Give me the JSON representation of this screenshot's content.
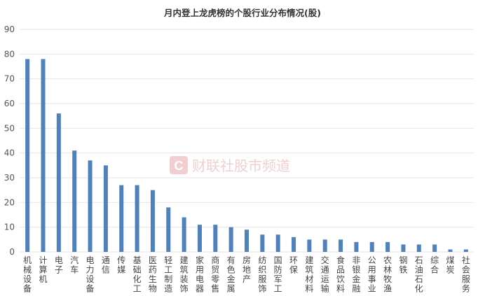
{
  "chart_data": {
    "type": "bar",
    "title": "月内登上龙虎榜的个股行业分布情况(股)",
    "xlabel": "",
    "ylabel": "",
    "ylim": [
      0,
      90
    ],
    "yticks": [
      0,
      10,
      20,
      30,
      40,
      50,
      60,
      70,
      80,
      90
    ],
    "grid": true,
    "bar_color": "#4f81bd",
    "categories": [
      "机械设备",
      "计算机",
      "电子",
      "汽车",
      "电力设备",
      "通信",
      "传媒",
      "基础化工",
      "医药生物",
      "轻工制造",
      "建筑装饰",
      "家用电器",
      "商贸零售",
      "有色金属",
      "房地产",
      "纺织服饰",
      "国防军工",
      "环保",
      "建筑材料",
      "交通运输",
      "食品饮料",
      "非银金融",
      "公用事业",
      "农林牧渔",
      "钢铁",
      "石油石化",
      "综合",
      "煤炭",
      "社会服务"
    ],
    "values": [
      78,
      78,
      56,
      41,
      37,
      35,
      27,
      27,
      25,
      18,
      14,
      11,
      11,
      10,
      9,
      7,
      7,
      6,
      5,
      5,
      5,
      4,
      4,
      4,
      3,
      3,
      3,
      1,
      1
    ]
  },
  "watermark": {
    "text": "财联社股市频道",
    "logo_letter": "C",
    "color": "#e8a9a9"
  }
}
